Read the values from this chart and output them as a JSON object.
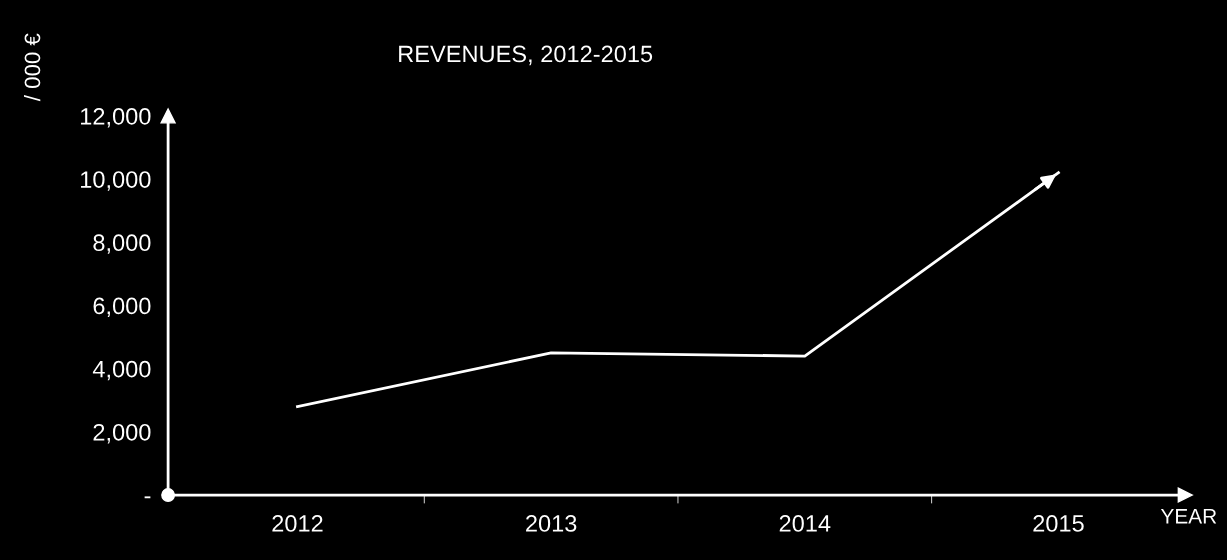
{
  "chart_data": {
    "type": "line",
    "title": "REVENUES, 2012-2015",
    "xlabel": "YEAR",
    "ylabel": "/ 000 €",
    "categories": [
      "2012",
      "2013",
      "2014",
      "2015"
    ],
    "series": [
      {
        "color": "#ffffff",
        "values": [
          2800,
          4500,
          4400,
          10200
        ]
      }
    ],
    "ylim": [
      0,
      12000
    ],
    "yticks": [
      {
        "value": 0,
        "label": "-"
      },
      {
        "value": 2000,
        "label": "2,000"
      },
      {
        "value": 4000,
        "label": "4,000"
      },
      {
        "value": 6000,
        "label": "6,000"
      },
      {
        "value": 8000,
        "label": "8,000"
      },
      {
        "value": 10000,
        "label": "10,000"
      },
      {
        "value": 12000,
        "label": "12,000"
      }
    ],
    "grid": false,
    "marker": "none",
    "line_style": "solid"
  }
}
